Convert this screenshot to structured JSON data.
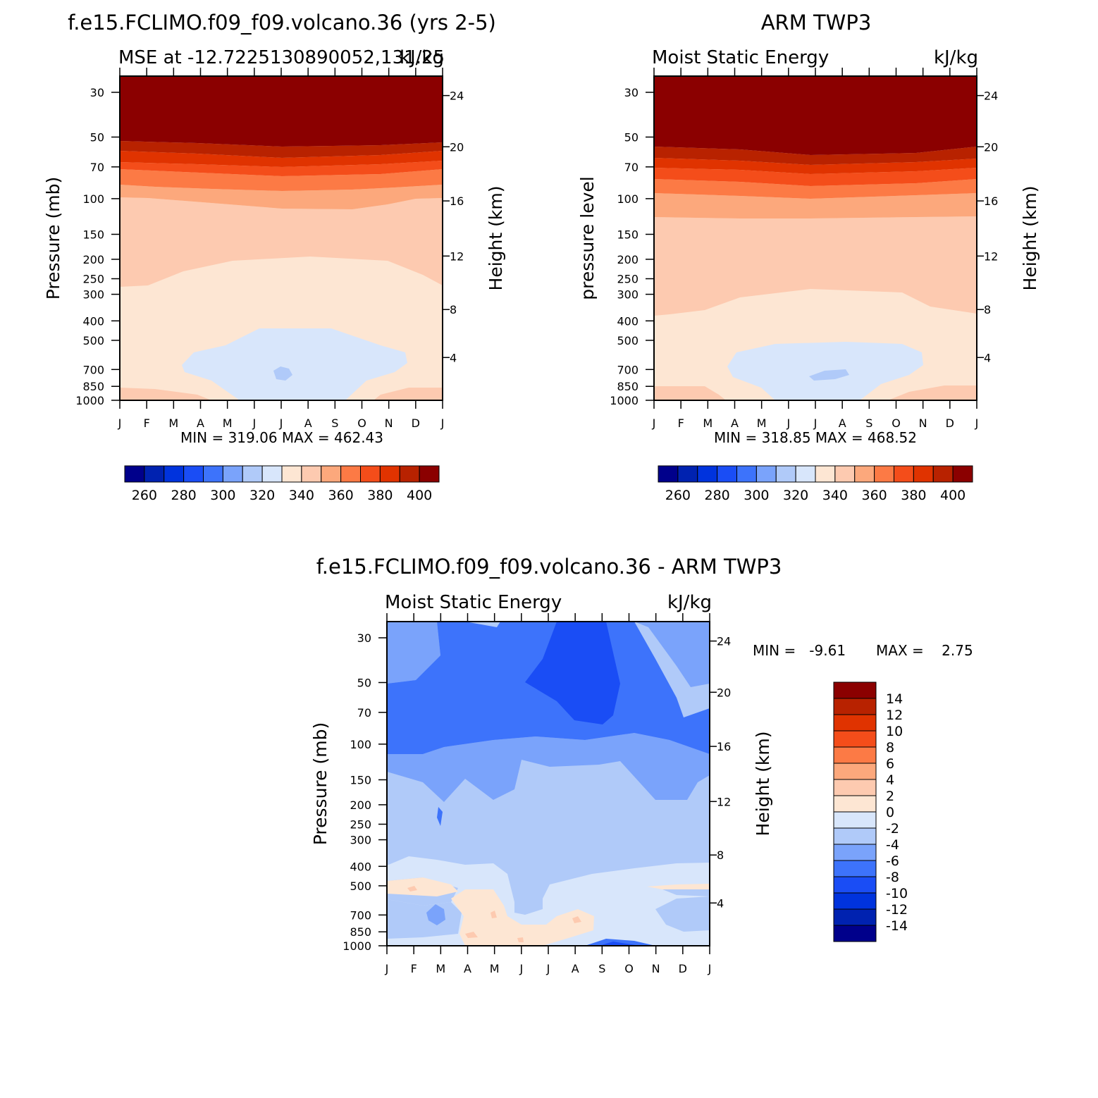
{
  "months": [
    "J",
    "F",
    "M",
    "A",
    "M",
    "J",
    "J",
    "A",
    "S",
    "O",
    "N",
    "D",
    "J"
  ],
  "pressure_ticks": [
    "30",
    "50",
    "70",
    "100",
    "150",
    "200",
    "250",
    "300",
    "400",
    "500",
    "700",
    "850",
    "1000"
  ],
  "height_ticks": [
    "24",
    "20",
    "16",
    "12",
    "8",
    "4"
  ],
  "colors": {
    "palette": [
      "#00008b",
      "#0022b0",
      "#0033dd",
      "#1a4df5",
      "#3d73fb",
      "#7aa3fb",
      "#b0caf9",
      "#d8e6fb",
      "#fde6d3",
      "#fdcab0",
      "#fca87c",
      "#fc7a45",
      "#f44d1a",
      "#e03300",
      "#b82200",
      "#8b0000"
    ]
  },
  "figure": {
    "model_title": "f.e15.FCLIMO.f09_f09.volcano.36 (yrs 2-5)",
    "obs_title": "ARM TWP3",
    "diff_title": "f.e15.FCLIMO.f09_f09.volcano.36 - ARM TWP3"
  },
  "chart_data": [
    {
      "type": "heatmap",
      "panel": "model",
      "title": "f.e15.FCLIMO.f09_f09.volcano.36 (yrs 2-5)",
      "subtitle_left": "MSE at -12.7225130890052,131.25",
      "subtitle_right": "kJ/kg",
      "ylabel": "Pressure (mb)",
      "ylabel_right": "Height (km)",
      "x_categories": [
        "J",
        "F",
        "M",
        "A",
        "M",
        "J",
        "J",
        "A",
        "S",
        "O",
        "N",
        "D",
        "J"
      ],
      "y_levels_mb": [
        30,
        50,
        70,
        100,
        150,
        200,
        250,
        300,
        400,
        500,
        700,
        850,
        1000
      ],
      "min_label": "MIN = 319.06 MAX = 462.43",
      "min": 319.06,
      "max": 462.43,
      "colorbar": {
        "levels": [
          250,
          260,
          270,
          280,
          290,
          300,
          310,
          320,
          330,
          340,
          350,
          360,
          370,
          380,
          390,
          400
        ],
        "labels": [
          "260",
          "280",
          "300",
          "320",
          "340",
          "360",
          "380",
          "400"
        ]
      }
    },
    {
      "type": "heatmap",
      "panel": "observations",
      "title": "ARM TWP3",
      "subtitle_left": "Moist Static Energy",
      "subtitle_right": "kJ/kg",
      "ylabel": "pressure level",
      "ylabel_right": "Height (km)",
      "x_categories": [
        "J",
        "F",
        "M",
        "A",
        "M",
        "J",
        "J",
        "A",
        "S",
        "O",
        "N",
        "D",
        "J"
      ],
      "y_levels_mb": [
        30,
        50,
        70,
        100,
        150,
        200,
        250,
        300,
        400,
        500,
        700,
        850,
        1000
      ],
      "min_label": "MIN = 318.85 MAX = 468.52",
      "min": 318.85,
      "max": 468.52,
      "colorbar": {
        "levels": [
          250,
          260,
          270,
          280,
          290,
          300,
          310,
          320,
          330,
          340,
          350,
          360,
          370,
          380,
          390,
          400
        ],
        "labels": [
          "260",
          "280",
          "300",
          "320",
          "340",
          "360",
          "380",
          "400"
        ]
      }
    },
    {
      "type": "heatmap",
      "panel": "difference",
      "title": "f.e15.FCLIMO.f09_f09.volcano.36 - ARM TWP3",
      "subtitle_left": "Moist Static Energy",
      "subtitle_right": "kJ/kg",
      "ylabel": "Pressure (mb)",
      "ylabel_right": "Height (km)",
      "x_categories": [
        "J",
        "F",
        "M",
        "A",
        "M",
        "J",
        "J",
        "A",
        "S",
        "O",
        "N",
        "D",
        "J"
      ],
      "y_levels_mb": [
        30,
        50,
        70,
        100,
        150,
        200,
        250,
        300,
        400,
        500,
        700,
        850,
        1000
      ],
      "min_label_a": "MIN =   -9.61",
      "min_label_b": "MAX =    2.75",
      "min": -9.61,
      "max": 2.75,
      "colorbar": {
        "levels": [
          -14,
          -12,
          -10,
          -8,
          -6,
          -4,
          -2,
          0,
          2,
          4,
          6,
          8,
          10,
          12,
          14
        ],
        "labels": [
          "14",
          "12",
          "10",
          "8",
          "6",
          "4",
          "2",
          "0",
          "-2",
          "-4",
          "-6",
          "-8",
          "-10",
          "-12",
          "-14"
        ]
      }
    }
  ]
}
